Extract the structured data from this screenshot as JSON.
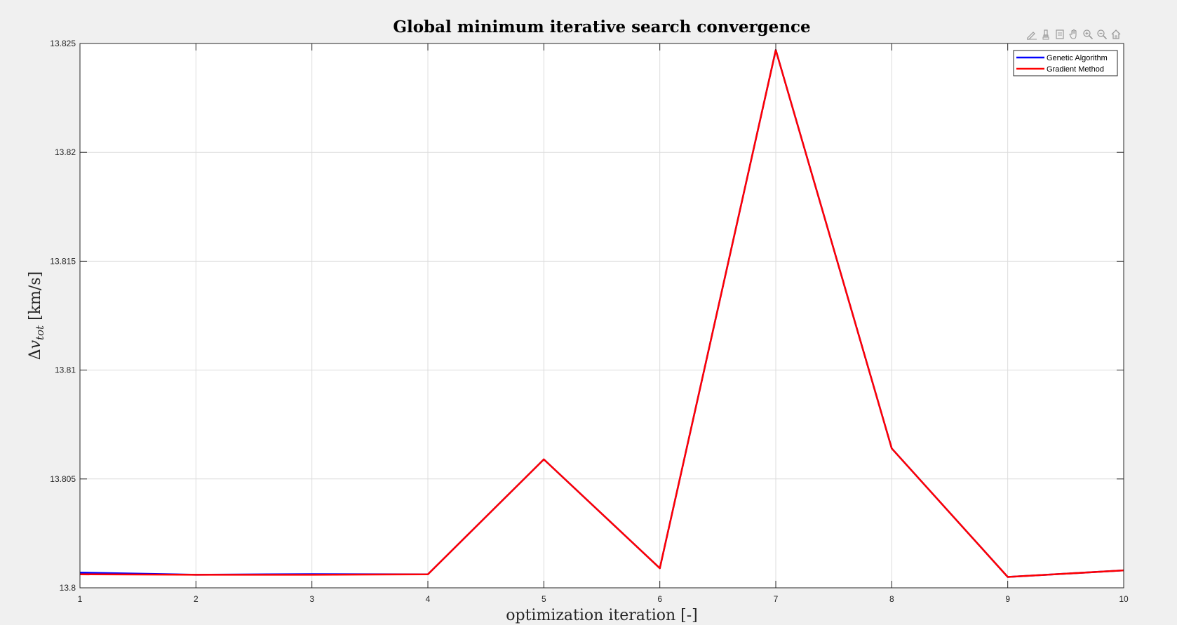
{
  "colors": {
    "background": "#f0f0f0",
    "axes_background": "#ffffff",
    "grid": "#dcdcdc",
    "genetic": "#0000ff",
    "gradient": "#ff0000"
  },
  "toolbar": {
    "icons": [
      "edit-icon",
      "brush-icon",
      "datatip-icon",
      "pan-icon",
      "zoom-in-icon",
      "zoom-out-icon",
      "home-icon"
    ]
  },
  "chart_data": {
    "type": "line",
    "title": "Global minimum iterative search convergence",
    "xlabel": "optimization iteration [-]",
    "ylabel_parts": {
      "delta": "Δ",
      "v": "v",
      "subscript": "tot",
      "unit": " [km/s]"
    },
    "xlim": [
      1,
      10
    ],
    "ylim": [
      13.8,
      13.825
    ],
    "xticks": [
      1,
      2,
      3,
      4,
      5,
      6,
      7,
      8,
      9,
      10
    ],
    "xtick_labels": [
      "1",
      "2",
      "3",
      "4",
      "5",
      "6",
      "7",
      "8",
      "9",
      "10"
    ],
    "yticks": [
      13.8,
      13.805,
      13.81,
      13.815,
      13.82,
      13.825
    ],
    "ytick_labels": [
      "13.8",
      "13.805",
      "13.81",
      "13.815",
      "13.82",
      "13.825"
    ],
    "grid": true,
    "legend_position": "top-right",
    "x": [
      1,
      2,
      3,
      4,
      5,
      6,
      7,
      8,
      9,
      10
    ],
    "series": [
      {
        "name": "Genetic Algorithm",
        "color": "#0000ff",
        "values": [
          13.8007,
          13.8006,
          13.80063,
          13.80062,
          13.8059,
          13.8009,
          13.8247,
          13.8064,
          13.8005,
          13.8008
        ]
      },
      {
        "name": "Gradient Method",
        "color": "#ff0000",
        "values": [
          13.80062,
          13.8006,
          13.8006,
          13.80062,
          13.8059,
          13.8009,
          13.8247,
          13.8064,
          13.8005,
          13.8008
        ]
      }
    ]
  }
}
